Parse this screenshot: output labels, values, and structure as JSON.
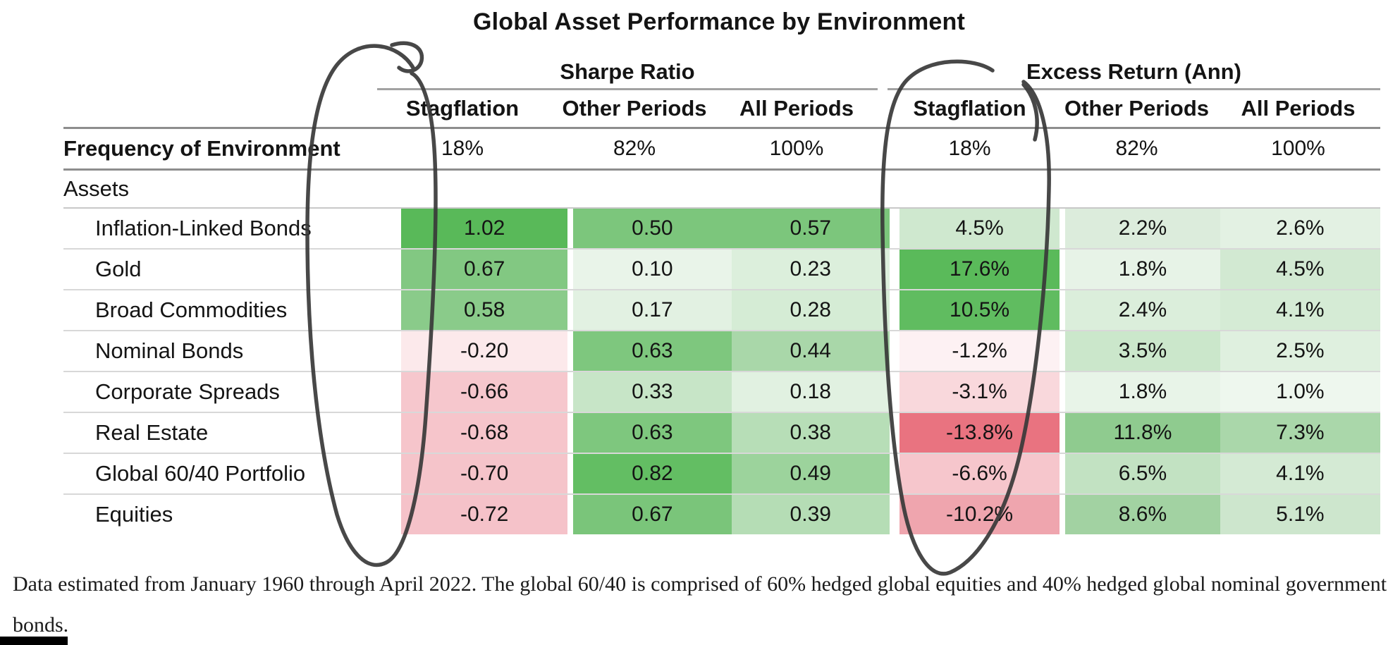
{
  "title": "Global Asset Performance by Environment",
  "table": {
    "group_headers": [
      "Sharpe Ratio",
      "Excess Return (Ann)"
    ],
    "columns": [
      "Stagflation",
      "Other Periods",
      "All Periods",
      "Stagflation",
      "Other Periods",
      "All Periods"
    ],
    "frequency": {
      "label": "Frequency of Environment",
      "values": [
        "18%",
        "82%",
        "100%",
        "18%",
        "82%",
        "100%"
      ]
    },
    "assets_label": "Assets",
    "rows": [
      {
        "label": "Inflation-Linked Bonds",
        "cells": [
          {
            "v": "1.02",
            "bg": "#59b959"
          },
          {
            "v": "0.50",
            "bg": "#7cc67c"
          },
          {
            "v": "0.57",
            "bg": "#7cc67c"
          },
          {
            "v": "4.5%",
            "bg": "#cfe8cf"
          },
          {
            "v": "2.2%",
            "bg": "#dcecdc"
          },
          {
            "v": "2.6%",
            "bg": "#e3f1e3"
          }
        ]
      },
      {
        "label": "Gold",
        "cells": [
          {
            "v": "0.67",
            "bg": "#82c882"
          },
          {
            "v": "0.10",
            "bg": "#e9f4e9"
          },
          {
            "v": "0.23",
            "bg": "#dcefdc"
          },
          {
            "v": "17.6%",
            "bg": "#5aba5a"
          },
          {
            "v": "1.8%",
            "bg": "#e7f3e7"
          },
          {
            "v": "4.5%",
            "bg": "#d2e9d2"
          }
        ]
      },
      {
        "label": "Broad Commodities",
        "cells": [
          {
            "v": "0.58",
            "bg": "#8acb8a"
          },
          {
            "v": "0.17",
            "bg": "#e2f1e2"
          },
          {
            "v": "0.28",
            "bg": "#d5ecd5"
          },
          {
            "v": "10.5%",
            "bg": "#60bc60"
          },
          {
            "v": "2.4%",
            "bg": "#dbeedb"
          },
          {
            "v": "4.1%",
            "bg": "#d5ebd5"
          }
        ]
      },
      {
        "label": "Nominal Bonds",
        "cells": [
          {
            "v": "-0.20",
            "bg": "#fce9eb"
          },
          {
            "v": "0.63",
            "bg": "#7ec77e"
          },
          {
            "v": "0.44",
            "bg": "#a9d7a9"
          },
          {
            "v": "-1.2%",
            "bg": "#fdf1f3"
          },
          {
            "v": "3.5%",
            "bg": "#cbe7cb"
          },
          {
            "v": "2.5%",
            "bg": "#dff0df"
          }
        ]
      },
      {
        "label": "Corporate Spreads",
        "cells": [
          {
            "v": "-0.66",
            "bg": "#f6c7cd"
          },
          {
            "v": "0.33",
            "bg": "#c7e5c7"
          },
          {
            "v": "0.18",
            "bg": "#e1f1e1"
          },
          {
            "v": "-3.1%",
            "bg": "#f9d8dc"
          },
          {
            "v": "1.8%",
            "bg": "#e8f4e8"
          },
          {
            "v": "1.0%",
            "bg": "#eef7ee"
          }
        ]
      },
      {
        "label": "Real Estate",
        "cells": [
          {
            "v": "-0.68",
            "bg": "#f6c5cb"
          },
          {
            "v": "0.63",
            "bg": "#7ec77e"
          },
          {
            "v": "0.38",
            "bg": "#b7deb7"
          },
          {
            "v": "-13.8%",
            "bg": "#e97380"
          },
          {
            "v": "11.8%",
            "bg": "#8fcb8f"
          },
          {
            "v": "7.3%",
            "bg": "#aad7aa"
          }
        ]
      },
      {
        "label": "Global 60/40 Portfolio",
        "cells": [
          {
            "v": "-0.70",
            "bg": "#f5c4ca"
          },
          {
            "v": "0.82",
            "bg": "#63be63"
          },
          {
            "v": "0.49",
            "bg": "#9cd39c"
          },
          {
            "v": "-6.6%",
            "bg": "#f6c6cc"
          },
          {
            "v": "6.5%",
            "bg": "#c2e2c2"
          },
          {
            "v": "4.1%",
            "bg": "#d4ead4"
          }
        ]
      },
      {
        "label": "Equities",
        "cells": [
          {
            "v": "-0.72",
            "bg": "#f5c2c9"
          },
          {
            "v": "0.67",
            "bg": "#7ac57a"
          },
          {
            "v": "0.39",
            "bg": "#b5ddb5"
          },
          {
            "v": "-10.2%",
            "bg": "#efa5ae"
          },
          {
            "v": "8.6%",
            "bg": "#a2d2a2"
          },
          {
            "v": "5.1%",
            "bg": "#cde6cd"
          }
        ]
      }
    ]
  },
  "annotations": {
    "hand_drawn_circles": [
      "Sharpe Ratio - Stagflation column",
      "Excess Return (Ann) - Stagflation column"
    ],
    "circle_color": "#383838"
  },
  "footnote": {
    "text": "Data estimated from January 1960 through April 2022. The global 60/40 is comprised of 60% hedged global equities and 40% hedged global nominal government bonds."
  },
  "colors": {
    "strong_green": "#59b959",
    "strong_red": "#e97380",
    "rule_dark": "#8d8d8d",
    "rule_light": "#d8d8d8"
  },
  "chart_data": {
    "type": "heatmap",
    "title": "Global Asset Performance by Environment",
    "row_labels": [
      "Inflation-Linked Bonds",
      "Gold",
      "Broad Commodities",
      "Nominal Bonds",
      "Corporate Spreads",
      "Real Estate",
      "Global 60/40 Portfolio",
      "Equities"
    ],
    "sections": [
      {
        "name": "Sharpe Ratio",
        "columns": [
          "Stagflation",
          "Other Periods",
          "All Periods"
        ],
        "frequency_of_environment_pct": [
          18,
          82,
          100
        ],
        "values": [
          [
            1.02,
            0.5,
            0.57
          ],
          [
            0.67,
            0.1,
            0.23
          ],
          [
            0.58,
            0.17,
            0.28
          ],
          [
            -0.2,
            0.63,
            0.44
          ],
          [
            -0.66,
            0.33,
            0.18
          ],
          [
            -0.68,
            0.63,
            0.38
          ],
          [
            -0.7,
            0.82,
            0.49
          ],
          [
            -0.72,
            0.67,
            0.39
          ]
        ]
      },
      {
        "name": "Excess Return (Ann)",
        "columns": [
          "Stagflation",
          "Other Periods",
          "All Periods"
        ],
        "frequency_of_environment_pct": [
          18,
          82,
          100
        ],
        "values_pct": [
          [
            4.5,
            2.2,
            2.6
          ],
          [
            17.6,
            1.8,
            4.5
          ],
          [
            10.5,
            2.4,
            4.1
          ],
          [
            -1.2,
            3.5,
            2.5
          ],
          [
            -3.1,
            1.8,
            1.0
          ],
          [
            -13.8,
            11.8,
            7.3
          ],
          [
            -6.6,
            6.5,
            4.1
          ],
          [
            -10.2,
            8.6,
            5.1
          ]
        ]
      }
    ],
    "color_scale": {
      "negative": "red",
      "positive": "green",
      "midpoint": 0
    },
    "legend_position": "none",
    "annotation": "Hand-drawn ovals circle both Stagflation columns"
  }
}
